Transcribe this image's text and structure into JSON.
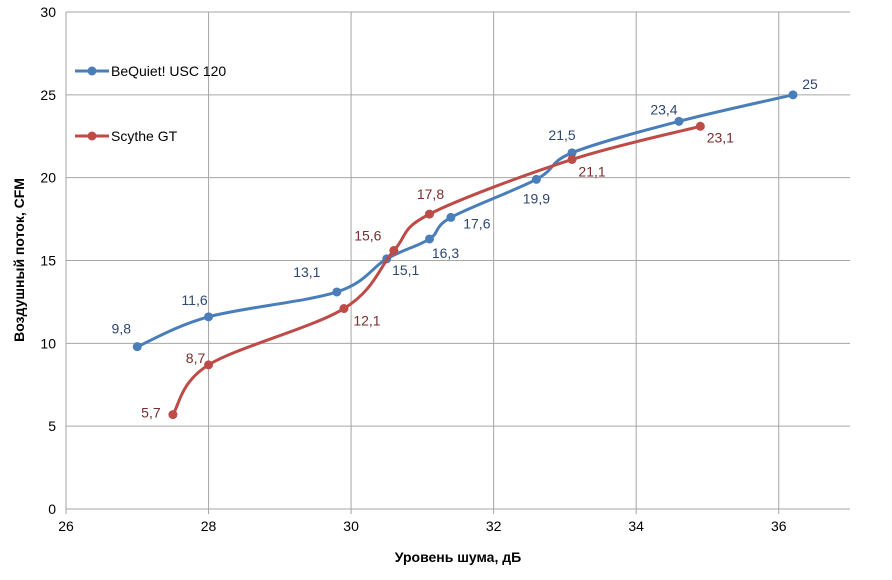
{
  "chart_data": {
    "type": "line",
    "title": "",
    "xlabel": "Уровень шума, дБ",
    "ylabel": "Воздушный поток, CFM",
    "xlim": [
      26,
      37
    ],
    "ylim": [
      0,
      30
    ],
    "xticks": [
      26,
      28,
      30,
      32,
      34,
      36
    ],
    "yticks": [
      0,
      5,
      10,
      15,
      20,
      25,
      30
    ],
    "grid": true,
    "legend": "top-left",
    "series": [
      {
        "name": "BeQuiet! USC 120",
        "color": "#4a7ebb",
        "label_color": "#2f4770",
        "x": [
          27,
          28,
          29.8,
          30.5,
          31.1,
          31.4,
          32.6,
          33.1,
          34.6,
          36.2
        ],
        "y": [
          9.8,
          11.6,
          13.1,
          15.1,
          16.3,
          17.6,
          19.9,
          21.5,
          23.4,
          25
        ],
        "labels": [
          "9,8",
          "11,6",
          "13,1",
          "15,1",
          "16,3",
          "17,6",
          "19,9",
          "21,5",
          "23,4",
          "25"
        ]
      },
      {
        "name": "Scythe GT",
        "color": "#be4b48",
        "label_color": "#7a2e2c",
        "x": [
          27.5,
          28,
          29.9,
          30.6,
          31.1,
          33.1,
          34.9
        ],
        "y": [
          5.7,
          8.7,
          12.1,
          15.6,
          17.8,
          21.1,
          23.1
        ],
        "labels": [
          "5,7",
          "8,7",
          "12,1",
          "15,6",
          "17,8",
          "21,1",
          "23,1"
        ]
      }
    ]
  }
}
